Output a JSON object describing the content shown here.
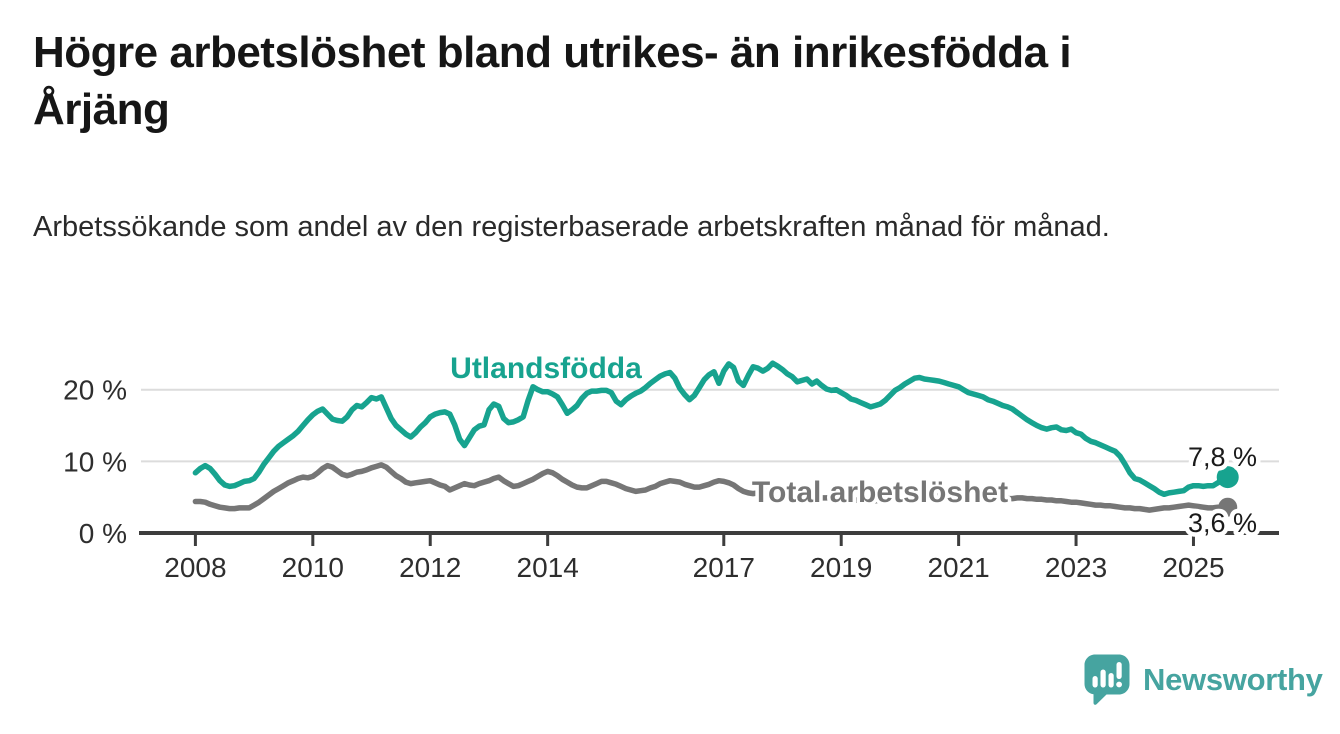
{
  "page": {
    "background": "#ffffff"
  },
  "header": {
    "title": "Högre arbetslöshet bland utrikes- än inrikesfödda i Årjäng",
    "subtitle": "Arbetssökande som andel av den registerbaserade arbetskraften månad för månad."
  },
  "branding": {
    "logo_text": "Newsworthy",
    "logo_icon": "speech-bubble-bar-chart-icon",
    "logo_color": "#46a4a0"
  },
  "chart_data": {
    "type": "line",
    "unit": "%",
    "frequency": "monthly",
    "start_month": "2008-01",
    "end_month": "2025-08",
    "colors": {
      "grid": "#dcdcdc",
      "axis": "#3d3d3d",
      "tick_label": "#2e2e2e",
      "value_label": "#1a1a1a",
      "background": "#ffffff"
    },
    "x_axis": {
      "tick_labels": [
        "2008",
        "2010",
        "2012",
        "2014",
        "2017",
        "2019",
        "2021",
        "2023",
        "2025"
      ],
      "tick_years": [
        2008,
        2010,
        2012,
        2014,
        2017,
        2019,
        2021,
        2023,
        2025
      ]
    },
    "y_axis": {
      "tick_labels": [
        "0 %",
        "10 %",
        "20 %"
      ],
      "tick_values": [
        0,
        10,
        20
      ],
      "range": [
        0,
        27
      ],
      "grid": true
    },
    "series": [
      {
        "name": "Utlandsfödda",
        "color": "#17a38f",
        "end_label": "7,8 %",
        "end_value": 7.8,
        "values": [
          8.4,
          9.0,
          9.4,
          9.0,
          8.2,
          7.3,
          6.7,
          6.5,
          6.6,
          6.9,
          7.2,
          7.3,
          7.6,
          8.5,
          9.6,
          10.5,
          11.4,
          12.1,
          12.6,
          13.1,
          13.6,
          14.2,
          15.0,
          15.8,
          16.5,
          17.0,
          17.3,
          16.6,
          15.9,
          15.7,
          15.6,
          16.2,
          17.2,
          17.8,
          17.6,
          18.2,
          18.9,
          18.7,
          19.0,
          17.5,
          16.0,
          15.0,
          14.4,
          13.8,
          13.4,
          14.0,
          14.8,
          15.4,
          16.2,
          16.6,
          16.8,
          16.9,
          16.6,
          15.1,
          13.1,
          12.2,
          13.3,
          14.4,
          14.9,
          15.1,
          17.2,
          18.0,
          17.7,
          16.0,
          15.4,
          15.5,
          15.8,
          16.2,
          18.5,
          20.4,
          20.0,
          19.7,
          19.7,
          19.4,
          19.0,
          17.9,
          16.7,
          17.2,
          17.8,
          18.8,
          19.5,
          19.8,
          19.8,
          19.9,
          19.9,
          19.6,
          18.4,
          17.9,
          18.6,
          19.1,
          19.5,
          19.8,
          20.3,
          20.9,
          21.4,
          21.9,
          22.2,
          22.4,
          21.6,
          20.2,
          19.3,
          18.6,
          19.2,
          20.3,
          21.4,
          22.1,
          22.5,
          20.9,
          22.6,
          23.6,
          23.1,
          21.2,
          20.6,
          22.0,
          23.2,
          23.0,
          22.6,
          23.0,
          23.7,
          23.3,
          22.8,
          22.2,
          21.8,
          21.1,
          21.3,
          21.5,
          20.8,
          21.2,
          20.6,
          20.1,
          19.9,
          20.0,
          19.6,
          19.2,
          18.7,
          18.5,
          18.2,
          17.9,
          17.6,
          17.8,
          18.0,
          18.5,
          19.2,
          19.9,
          20.3,
          20.8,
          21.2,
          21.6,
          21.7,
          21.5,
          21.4,
          21.3,
          21.2,
          21.0,
          20.8,
          20.6,
          20.4,
          20.0,
          19.6,
          19.4,
          19.2,
          19.0,
          18.6,
          18.4,
          18.1,
          17.8,
          17.6,
          17.3,
          16.8,
          16.3,
          15.8,
          15.4,
          15.0,
          14.7,
          14.5,
          14.7,
          14.8,
          14.4,
          14.3,
          14.5,
          14.0,
          13.8,
          13.2,
          12.8,
          12.6,
          12.3,
          12.0,
          11.7,
          11.4,
          10.7,
          9.6,
          8.4,
          7.6,
          7.4,
          7.0,
          6.6,
          6.2,
          5.7,
          5.4,
          5.6,
          5.7,
          5.8,
          5.9,
          6.4,
          6.6,
          6.6,
          6.5,
          6.6,
          6.6,
          7.0,
          7.4,
          7.8
        ]
      },
      {
        "name": "Total arbetslöshet",
        "color": "#767676",
        "end_label": "3,6 %",
        "end_value": 3.6,
        "values": [
          4.4,
          4.4,
          4.3,
          4.0,
          3.8,
          3.6,
          3.5,
          3.4,
          3.4,
          3.5,
          3.5,
          3.5,
          3.9,
          4.3,
          4.8,
          5.3,
          5.8,
          6.2,
          6.6,
          7.0,
          7.3,
          7.6,
          7.8,
          7.7,
          7.9,
          8.4,
          9.0,
          9.4,
          9.2,
          8.7,
          8.2,
          8.0,
          8.2,
          8.5,
          8.6,
          8.8,
          9.1,
          9.3,
          9.5,
          9.2,
          8.6,
          8.0,
          7.6,
          7.1,
          6.9,
          7.0,
          7.1,
          7.2,
          7.3,
          7.0,
          6.7,
          6.5,
          6.0,
          6.3,
          6.6,
          6.9,
          6.7,
          6.6,
          6.9,
          7.1,
          7.3,
          7.6,
          7.8,
          7.3,
          6.9,
          6.5,
          6.6,
          6.9,
          7.2,
          7.5,
          7.9,
          8.3,
          8.6,
          8.4,
          8.0,
          7.5,
          7.1,
          6.7,
          6.4,
          6.3,
          6.3,
          6.6,
          6.9,
          7.2,
          7.2,
          7.0,
          6.8,
          6.5,
          6.2,
          6.0,
          5.8,
          5.9,
          6.0,
          6.3,
          6.5,
          6.9,
          7.1,
          7.3,
          7.2,
          7.1,
          6.8,
          6.6,
          6.4,
          6.4,
          6.6,
          6.8,
          7.1,
          7.3,
          7.2,
          7.0,
          6.7,
          6.2,
          5.8,
          5.6,
          5.5,
          5.6,
          5.7,
          5.8,
          5.9,
          6.0,
          5.9,
          5.7,
          5.5,
          5.3,
          5.2,
          5.1,
          5.0,
          5.0,
          4.9,
          4.9,
          5.0,
          5.0,
          4.9,
          4.8,
          4.7,
          4.6,
          4.5,
          4.5,
          4.4,
          4.5,
          4.6,
          4.8,
          5.0,
          5.2,
          5.3,
          5.5,
          5.7,
          5.9,
          6.0,
          5.9,
          5.8,
          5.7,
          5.6,
          5.5,
          5.4,
          5.3,
          5.3,
          5.2,
          5.1,
          5.0,
          5.0,
          4.9,
          4.9,
          4.8,
          4.8,
          4.8,
          4.8,
          4.8,
          4.9,
          4.9,
          4.8,
          4.8,
          4.7,
          4.7,
          4.6,
          4.6,
          4.5,
          4.5,
          4.4,
          4.3,
          4.3,
          4.2,
          4.1,
          4.0,
          3.9,
          3.9,
          3.8,
          3.8,
          3.7,
          3.6,
          3.5,
          3.5,
          3.4,
          3.4,
          3.3,
          3.2,
          3.3,
          3.4,
          3.5,
          3.5,
          3.6,
          3.7,
          3.8,
          3.9,
          3.8,
          3.7,
          3.6,
          3.5,
          3.5,
          3.6,
          3.6,
          3.6
        ]
      }
    ]
  }
}
